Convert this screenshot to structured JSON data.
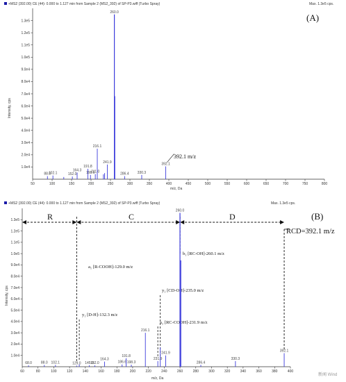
{
  "colors": {
    "peak": "#3b3bdc",
    "axis": "#333333",
    "marker": "#1a1aa8"
  },
  "watermark": "新闻 Wind",
  "chart_data": [
    {
      "type": "bar",
      "header": "+MS2 (392.00) CE (44): 0.000 to 1.127 min from Sample 2 (MS2_392) of SP-P3.wiff (Turbo Spray)",
      "max_label": "Max. 1.3e5 cps.",
      "panel_label": "(A)",
      "ylabel": "Intensity, cps",
      "xlabel": "m/z, Da",
      "xlim": [
        50,
        800
      ],
      "ylim": [
        0,
        140000
      ],
      "xticks": [
        "50",
        "100",
        "150",
        "200",
        "250",
        "300",
        "350",
        "400",
        "450",
        "500",
        "550",
        "600",
        "650",
        "700",
        "750",
        "800"
      ],
      "yticks": [
        "1.0e4",
        "2.0e4",
        "3.0e4",
        "4.0e4",
        "5.0e4",
        "6.0e4",
        "7.0e4",
        "8.0e4",
        "9.0e4",
        "1.0e5",
        "1.1e5",
        "1.2e5",
        "1.3e5"
      ],
      "peaks": [
        {
          "x": 88.0,
          "y": 2500,
          "label": "88.0"
        },
        {
          "x": 102.1,
          "y": 3000,
          "label": "102.1"
        },
        {
          "x": 130.0,
          "y": 1800,
          "label": ""
        },
        {
          "x": 152.0,
          "y": 2200,
          "label": "152.0"
        },
        {
          "x": 164.3,
          "y": 5500,
          "label": "164.3"
        },
        {
          "x": 191.8,
          "y": 8500,
          "label": "191.8"
        },
        {
          "x": 198.6,
          "y": 3500,
          "label": "198.6"
        },
        {
          "x": 211.0,
          "y": 4200,
          "label": "211.0"
        },
        {
          "x": 216.1,
          "y": 25000,
          "label": "216.1"
        },
        {
          "x": 231.9,
          "y": 4000,
          "label": ""
        },
        {
          "x": 235.0,
          "y": 5000,
          "label": ""
        },
        {
          "x": 241.9,
          "y": 12000,
          "label": "241.9"
        },
        {
          "x": 260.0,
          "y": 135000,
          "label": "260.0"
        },
        {
          "x": 261.0,
          "y": 68000,
          "label": ""
        },
        {
          "x": 286.4,
          "y": 2500,
          "label": "286.4"
        },
        {
          "x": 330.3,
          "y": 3500,
          "label": "330.3"
        },
        {
          "x": 392.1,
          "y": 10500,
          "label": "392.1"
        }
      ],
      "annotation": "392.1 m/z"
    },
    {
      "type": "bar",
      "header": "+MS2 (392.00) CE (44): 0.000 to 1.127 min from Sample 2 (MS2_392) of SP-P3.wiff (Turbo Spray)",
      "max_label": "Max. 1.3e5 cps.",
      "panel_label": "(B)",
      "ylabel": "Intensity, cps",
      "xlabel": "m/z, Da",
      "xlim": [
        60,
        400
      ],
      "ylim": [
        0,
        140000
      ],
      "xticks": [
        "60",
        "80",
        "100",
        "120",
        "140",
        "160",
        "180",
        "200",
        "220",
        "240",
        "260",
        "280",
        "300",
        "320",
        "340",
        "360",
        "380",
        "400"
      ],
      "yticks": [
        "1.0e4",
        "2.0e4",
        "3.0e4",
        "4.0e4",
        "5.0e4",
        "6.0e4",
        "7.0e4",
        "8.0e4",
        "9.0e4",
        "1.0e5",
        "1.1e5",
        "1.2e5",
        "1.3e5"
      ],
      "peaks": [
        {
          "x": 68.0,
          "y": 1200,
          "label": "68.0"
        },
        {
          "x": 88.0,
          "y": 1500,
          "label": "88.0"
        },
        {
          "x": 102.1,
          "y": 1500,
          "label": "102.1"
        },
        {
          "x": 129.0,
          "y": 1000,
          "label": "129.0"
        },
        {
          "x": 132.3,
          "y": 2000,
          "label": ""
        },
        {
          "x": 145.0,
          "y": 1200,
          "label": "145.0"
        },
        {
          "x": 152.0,
          "y": 1200,
          "label": "152.0"
        },
        {
          "x": 164.3,
          "y": 4500,
          "label": "164.3"
        },
        {
          "x": 186.6,
          "y": 2000,
          "label": "186.6"
        },
        {
          "x": 191.8,
          "y": 7500,
          "label": "191.8"
        },
        {
          "x": 198.3,
          "y": 1800,
          "label": "198.3"
        },
        {
          "x": 216.1,
          "y": 30000,
          "label": "216.1"
        },
        {
          "x": 231.9,
          "y": 5000,
          "label": "231.9"
        },
        {
          "x": 235.0,
          "y": 17000,
          "label": ""
        },
        {
          "x": 241.9,
          "y": 10000,
          "label": "241.9"
        },
        {
          "x": 260.0,
          "y": 136000,
          "label": "260.0"
        },
        {
          "x": 261.0,
          "y": 94000,
          "label": ""
        },
        {
          "x": 286.4,
          "y": 1500,
          "label": "286.4"
        },
        {
          "x": 330.3,
          "y": 5000,
          "label": "330.3"
        },
        {
          "x": 392.1,
          "y": 12000,
          "label": "392.1"
        }
      ],
      "segments": [
        "R",
        "C",
        "D"
      ],
      "rcd_label": "RCD=392.1 m/z",
      "annotations": [
        {
          "text": "a₁ [R-COOH]-129.0 m/z",
          "x": 129.0
        },
        {
          "text": "b₁ [RC-OH]-260.1 m/z",
          "x": 260.1
        },
        {
          "text": "y₁ [CD-OH]-235.0 m/z",
          "x": 235.0
        },
        {
          "text": "y₁ [D-H]-132.3 m/z",
          "x": 132.3
        },
        {
          "text": "a₂ [RC-COOH]-231.9 m/z",
          "x": 231.9
        }
      ]
    }
  ]
}
